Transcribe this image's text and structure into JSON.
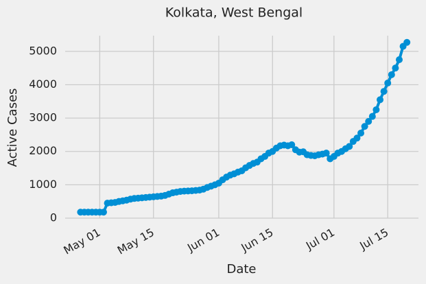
{
  "chart_data": {
    "type": "line",
    "title": "Kolkata, West Bengal",
    "xlabel": "Date",
    "ylabel": "Active Cases",
    "x": [
      "04-26",
      "04-27",
      "04-28",
      "04-29",
      "04-30",
      "05-01",
      "05-02",
      "05-03",
      "05-04",
      "05-05",
      "05-06",
      "05-07",
      "05-08",
      "05-09",
      "05-10",
      "05-11",
      "05-12",
      "05-13",
      "05-14",
      "05-15",
      "05-16",
      "05-17",
      "05-18",
      "05-19",
      "05-20",
      "05-21",
      "05-22",
      "05-23",
      "05-24",
      "05-25",
      "05-26",
      "05-27",
      "05-28",
      "05-29",
      "05-30",
      "05-31",
      "06-01",
      "06-02",
      "06-03",
      "06-04",
      "06-05",
      "06-06",
      "06-07",
      "06-08",
      "06-09",
      "06-10",
      "06-11",
      "06-12",
      "06-13",
      "06-14",
      "06-15",
      "06-16",
      "06-17",
      "06-18",
      "06-19",
      "06-20",
      "06-21",
      "06-22",
      "06-23",
      "06-24",
      "06-25",
      "06-26",
      "06-27",
      "06-28",
      "06-29",
      "06-30",
      "07-01",
      "07-02",
      "07-03",
      "07-04",
      "07-05",
      "07-06",
      "07-07",
      "07-08",
      "07-09",
      "07-10",
      "07-11",
      "07-12",
      "07-13",
      "07-14",
      "07-15",
      "07-16",
      "07-17",
      "07-18",
      "07-19",
      "07-20"
    ],
    "values": [
      180,
      180,
      180,
      180,
      180,
      180,
      180,
      450,
      460,
      470,
      500,
      520,
      540,
      570,
      590,
      600,
      610,
      620,
      630,
      640,
      650,
      660,
      680,
      720,
      760,
      780,
      800,
      810,
      815,
      820,
      830,
      840,
      870,
      920,
      960,
      1000,
      1050,
      1150,
      1230,
      1290,
      1330,
      1380,
      1420,
      1510,
      1580,
      1640,
      1680,
      1780,
      1850,
      1950,
      2000,
      2100,
      2170,
      2190,
      2170,
      2200,
      2050,
      1980,
      1990,
      1900,
      1880,
      1870,
      1900,
      1920,
      1950,
      1780,
      1850,
      1950,
      2000,
      2080,
      2150,
      2300,
      2400,
      2550,
      2750,
      2900,
      3050,
      3250,
      3550,
      3800,
      4050,
      4300,
      4500,
      4750,
      5150,
      5270
    ],
    "color": "#008fd5",
    "xlim": [
      "04-22",
      "07-23"
    ],
    "xticks": [
      {
        "value": "05-01",
        "label": "May 01"
      },
      {
        "value": "05-15",
        "label": "May 15"
      },
      {
        "value": "06-01",
        "label": "Jun 01"
      },
      {
        "value": "06-15",
        "label": "Jun 15"
      },
      {
        "value": "07-01",
        "label": "Jul 01"
      },
      {
        "value": "07-15",
        "label": "Jul 15"
      }
    ],
    "ylim": [
      0,
      5470
    ],
    "yticks": [
      0,
      1000,
      2000,
      3000,
      4000,
      5000
    ],
    "grid": true
  }
}
